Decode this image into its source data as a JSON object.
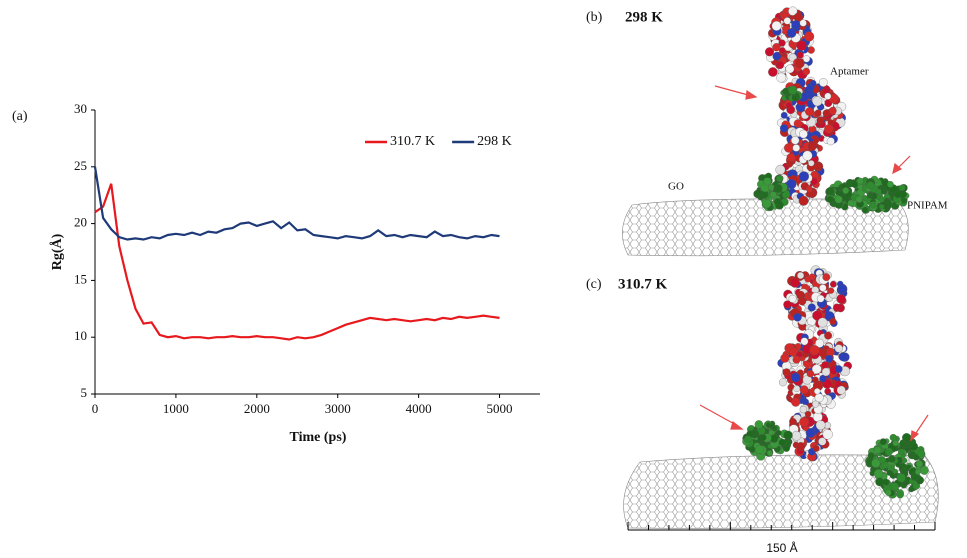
{
  "chart_data": {
    "type": "line",
    "x_label": "Time (ps)",
    "y_label": "Rg(Å)",
    "x": [
      0,
      100,
      200,
      300,
      400,
      500,
      600,
      700,
      800,
      900,
      1000,
      1100,
      1200,
      1300,
      1400,
      1500,
      1600,
      1700,
      1800,
      1900,
      2000,
      2100,
      2200,
      2300,
      2400,
      2500,
      2600,
      2700,
      2800,
      2900,
      3000,
      3100,
      3200,
      3300,
      3400,
      3500,
      3600,
      3700,
      3800,
      3900,
      4000,
      4100,
      4200,
      4300,
      4400,
      4500,
      4600,
      4700,
      4800,
      4900,
      5000
    ],
    "series": [
      {
        "name": "310.7 K",
        "color": "#e8191d",
        "values": [
          21,
          21.5,
          23.5,
          18,
          15,
          12.5,
          11.2,
          11.3,
          10.2,
          10,
          10.1,
          9.9,
          10,
          10,
          9.9,
          10,
          10,
          10.1,
          10,
          10,
          10.1,
          10,
          10,
          9.9,
          9.8,
          10,
          9.9,
          10,
          10.2,
          10.5,
          10.8,
          11.1,
          11.3,
          11.5,
          11.7,
          11.6,
          11.5,
          11.6,
          11.5,
          11.4,
          11.5,
          11.6,
          11.5,
          11.7,
          11.6,
          11.8,
          11.7,
          11.8,
          11.9,
          11.8,
          11.7
        ]
      },
      {
        "name": "298 K",
        "color": "#1f3a78",
        "values": [
          25,
          20.5,
          19.5,
          18.8,
          18.6,
          18.7,
          18.6,
          18.8,
          18.7,
          19,
          19.1,
          19,
          19.2,
          19,
          19.3,
          19.2,
          19.5,
          19.6,
          20,
          20.1,
          19.8,
          20,
          20.2,
          19.6,
          20.1,
          19.4,
          19.5,
          19,
          18.9,
          18.8,
          18.7,
          18.9,
          18.8,
          18.7,
          18.9,
          19.4,
          18.9,
          19,
          18.8,
          19,
          18.9,
          18.8,
          19.3,
          18.9,
          19,
          18.8,
          18.7,
          18.9,
          18.8,
          19,
          18.9
        ]
      }
    ],
    "xlim": [
      0,
      5500
    ],
    "xticks": [
      0,
      1000,
      2000,
      3000,
      4000,
      5000
    ],
    "ylim": [
      5,
      30
    ],
    "yticks": [
      5,
      10,
      15,
      20,
      25,
      30
    ],
    "grid": false,
    "legend": "top-right"
  },
  "figure": {
    "panel_a": "(a)",
    "panel_b": {
      "label": "(b)",
      "title": "298 K",
      "aptamer": "Aptamer",
      "go": "GO",
      "pnipam": "PNIPAM"
    },
    "panel_c": {
      "label": "(c)",
      "title": "310.7 K"
    },
    "scale_bar": "150 Å"
  }
}
